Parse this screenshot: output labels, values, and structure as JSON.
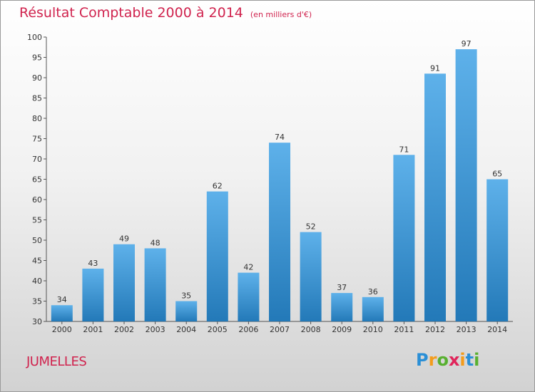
{
  "header": {
    "title": "Résultat Comptable 2000 à 2014",
    "subtitle": "(en milliers d'€)"
  },
  "footer": {
    "commune": "JUMELLES",
    "logo": "Proxiti",
    "logo_letters": [
      {
        "char": "P",
        "color": "#2a8fd6"
      },
      {
        "char": "r",
        "color": "#f39c1c"
      },
      {
        "char": "o",
        "color": "#58b030"
      },
      {
        "char": "x",
        "color": "#e0245a"
      },
      {
        "char": "i",
        "color": "#f39c1c"
      },
      {
        "char": "t",
        "color": "#2a8fd6"
      },
      {
        "char": "i",
        "color": "#58b030"
      }
    ]
  },
  "colors": {
    "title": "#d0234e",
    "bar_top": "#5eb1ea",
    "bar_bottom": "#2379b8"
  },
  "chart_data": {
    "type": "bar",
    "title": "Résultat Comptable 2000 à 2014",
    "subtitle": "(en milliers d'€)",
    "categories": [
      "2000",
      "2001",
      "2002",
      "2003",
      "2004",
      "2005",
      "2006",
      "2007",
      "2008",
      "2009",
      "2010",
      "2011",
      "2012",
      "2013",
      "2014"
    ],
    "values": [
      34,
      43,
      49,
      48,
      35,
      62,
      42,
      74,
      52,
      37,
      36,
      71,
      91,
      97,
      65
    ],
    "ylim": [
      30,
      100
    ],
    "yticks": [
      30,
      35,
      40,
      45,
      50,
      55,
      60,
      65,
      70,
      75,
      80,
      85,
      90,
      95,
      100
    ],
    "xlabel": "",
    "ylabel": "",
    "grid": false,
    "data_labels": true
  }
}
